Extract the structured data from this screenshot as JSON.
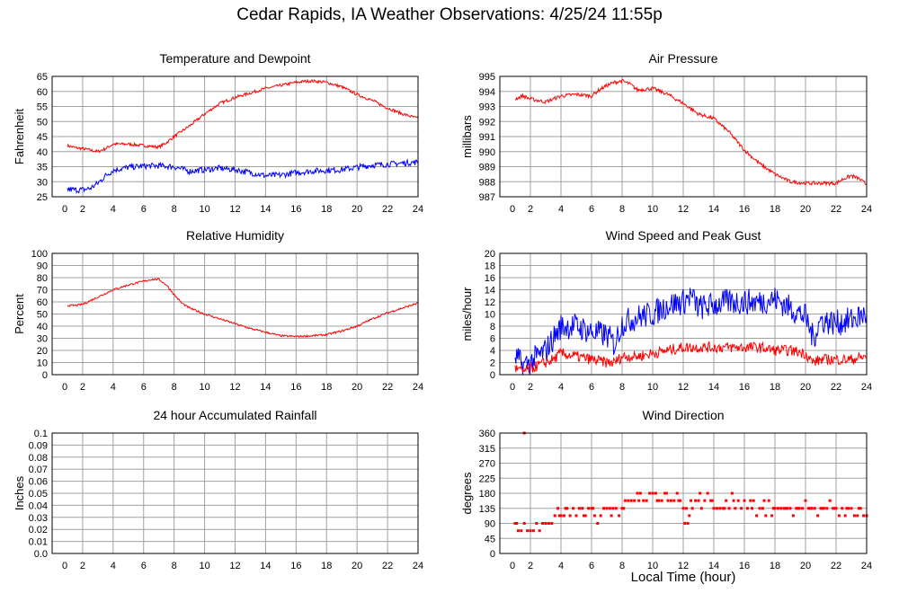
{
  "page": {
    "title": "Cedar Rapids, IA Weather Observations: 4/25/24 11:55p",
    "xaxis_title": "Local Time (hour)"
  },
  "colors": {
    "primary": "#ff0000",
    "secondary": "#0000ff",
    "grid": "#a0a0a0",
    "frame": "#000000"
  },
  "chart_data": [
    {
      "type": "line",
      "title": "Temperature and Dewpoint",
      "xlabel": "",
      "ylabel": "Fahrenheit",
      "xlim": [
        0,
        24
      ],
      "ylim": [
        25,
        65
      ],
      "xticks": [
        2,
        4,
        6,
        8,
        10,
        12,
        14,
        16,
        18,
        20,
        22,
        24
      ],
      "yticks": [
        25,
        30,
        35,
        40,
        45,
        50,
        55,
        60,
        65
      ],
      "grid": true,
      "series": [
        {
          "color": "#ff0000",
          "noise": 0.5,
          "x": [
            1,
            1.5,
            2,
            2.5,
            3,
            3.5,
            4,
            5,
            6,
            7,
            7.5,
            8,
            9,
            10,
            11,
            12,
            13,
            14,
            15,
            16,
            16.5,
            17,
            18,
            19,
            20,
            21,
            22,
            23,
            24
          ],
          "y": [
            42,
            41.3,
            41,
            40.5,
            40,
            41,
            42.5,
            42.5,
            42,
            41.5,
            43,
            45,
            48.5,
            52.5,
            56,
            58,
            59.5,
            61,
            62,
            63,
            63.3,
            63.5,
            63,
            61.5,
            59,
            57,
            54.5,
            52.5,
            51
          ]
        },
        {
          "color": "#0000ff",
          "noise": 1.0,
          "x": [
            1,
            1.5,
            2,
            2.5,
            3,
            3.5,
            4,
            5,
            6,
            7,
            8,
            9,
            10,
            11,
            12,
            13,
            14,
            15,
            16,
            17,
            18,
            19,
            20,
            21,
            22,
            23,
            24
          ],
          "y": [
            27.5,
            27.3,
            27.3,
            27.8,
            29.5,
            32,
            33.8,
            34.8,
            35.2,
            35.3,
            35,
            33.5,
            34,
            34.5,
            34,
            33,
            32,
            32.2,
            33,
            33.5,
            33.8,
            34,
            34.8,
            35.5,
            35.8,
            36.2,
            36.5
          ]
        }
      ]
    },
    {
      "type": "line",
      "title": "Air Pressure",
      "xlabel": "",
      "ylabel": "millibars",
      "xlim": [
        0,
        24
      ],
      "ylim": [
        987,
        995
      ],
      "xticks": [
        2,
        4,
        6,
        8,
        10,
        12,
        14,
        16,
        18,
        20,
        22,
        24
      ],
      "yticks": [
        987,
        988,
        989,
        990,
        991,
        992,
        993,
        994,
        995
      ],
      "grid": true,
      "series": [
        {
          "color": "#ff0000",
          "noise": 0.12,
          "x": [
            1,
            1.5,
            2,
            2.5,
            3,
            3.5,
            4,
            5,
            6,
            6.5,
            7,
            7.5,
            8,
            8.5,
            9,
            10,
            11,
            12,
            13,
            14,
            15,
            16,
            17,
            18,
            19,
            20,
            21,
            22,
            22.5,
            23,
            23.5,
            24
          ],
          "y": [
            993.5,
            993.7,
            993.5,
            993.4,
            993.3,
            993.5,
            993.7,
            993.8,
            993.7,
            994.1,
            994.4,
            994.6,
            994.7,
            994.5,
            994.1,
            994.2,
            993.8,
            993.2,
            992.5,
            992.2,
            991.3,
            990.1,
            989.2,
            988.5,
            988.0,
            987.9,
            987.9,
            987.9,
            988.2,
            988.4,
            988.2,
            987.8
          ]
        }
      ]
    },
    {
      "type": "line",
      "title": "Relative Humidity",
      "xlabel": "",
      "ylabel": "Percent",
      "xlim": [
        0,
        24
      ],
      "ylim": [
        0,
        100
      ],
      "xticks": [
        2,
        4,
        6,
        8,
        10,
        12,
        14,
        16,
        18,
        20,
        22,
        24
      ],
      "yticks": [
        0,
        10,
        20,
        30,
        40,
        50,
        60,
        70,
        80,
        90,
        100
      ],
      "grid": true,
      "series": [
        {
          "color": "#ff0000",
          "noise": 0.8,
          "x": [
            1,
            1.5,
            2,
            3,
            4,
            5,
            6,
            6.5,
            7,
            7.5,
            8,
            8.5,
            9,
            10,
            11,
            12,
            13,
            14,
            15,
            16,
            17,
            18,
            19,
            20,
            21,
            22,
            23,
            24
          ],
          "y": [
            57,
            57,
            58,
            64,
            70,
            74,
            77,
            78.5,
            78.5,
            74,
            66,
            59,
            55,
            50,
            46,
            42,
            38,
            35,
            32,
            31.5,
            32,
            33,
            36,
            40,
            46,
            51,
            55,
            59
          ]
        }
      ]
    },
    {
      "type": "line",
      "title": "Wind Speed and Peak Gust",
      "xlabel": "",
      "ylabel": "miles/hour",
      "xlim": [
        0,
        24
      ],
      "ylim": [
        0,
        20
      ],
      "xticks": [
        2,
        4,
        6,
        8,
        10,
        12,
        14,
        16,
        18,
        20,
        22,
        24
      ],
      "yticks": [
        0,
        2,
        4,
        6,
        8,
        10,
        12,
        14,
        16,
        18,
        20
      ],
      "grid": true,
      "series": [
        {
          "color": "#0000ff",
          "noise": 2.2,
          "x": [
            1,
            1.5,
            2,
            2.5,
            3,
            3.5,
            4,
            5,
            6,
            7,
            7.5,
            8,
            9,
            10,
            11,
            12,
            12.5,
            13,
            14,
            15,
            16,
            17,
            18,
            19,
            20,
            20.5,
            21,
            22,
            23,
            24
          ],
          "y": [
            3,
            1.5,
            2,
            3,
            4,
            6,
            8,
            8,
            7,
            6.5,
            5,
            8.5,
            9.5,
            10,
            11.5,
            12,
            13,
            11,
            11.5,
            12,
            12,
            12,
            12.5,
            11,
            9.5,
            6,
            9,
            8.5,
            9,
            10
          ]
        },
        {
          "color": "#ff0000",
          "noise": 0.9,
          "x": [
            1,
            1.5,
            2,
            2.5,
            3,
            3.5,
            4,
            5,
            6,
            7,
            7.5,
            8,
            9,
            10,
            11,
            12,
            13,
            14,
            15,
            16,
            17,
            18,
            19,
            20,
            20.5,
            21,
            22,
            23,
            24
          ],
          "y": [
            1,
            0.5,
            1,
            1.5,
            2,
            2.5,
            3.5,
            3,
            2.5,
            2,
            2,
            3,
            3,
            3.5,
            4,
            4.5,
            4.5,
            4.5,
            4.5,
            4.5,
            4.5,
            4,
            4,
            3.5,
            2,
            2.5,
            2.5,
            2.5,
            3
          ]
        }
      ]
    },
    {
      "type": "line",
      "title": "24 hour Accumulated Rainfall",
      "xlabel": "",
      "ylabel": "Inches",
      "xlim": [
        0,
        24
      ],
      "ylim": [
        0,
        0.1
      ],
      "xticks": [
        2,
        4,
        6,
        8,
        10,
        12,
        14,
        16,
        18,
        20,
        22,
        24
      ],
      "yticks": [
        0.0,
        0.01,
        0.02,
        0.03,
        0.04,
        0.05,
        0.06,
        0.07,
        0.08,
        0.09,
        0.1
      ],
      "ytick_labels": [
        "0.0",
        "0.01",
        "0.02",
        "0.03",
        "0.04",
        "0.05",
        "0.06",
        "0.07",
        "0.08",
        "0.09",
        "0.1"
      ],
      "grid": true,
      "series": [
        {
          "color": "#ff0000",
          "noise": 0,
          "x": [
            1,
            24
          ],
          "y": [
            0,
            0
          ]
        }
      ]
    },
    {
      "type": "scatter",
      "title": "Wind Direction",
      "xlabel": "Local Time (hour)",
      "ylabel": "degrees",
      "xlim": [
        0,
        24
      ],
      "ylim": [
        0,
        360
      ],
      "xticks": [
        2,
        4,
        6,
        8,
        10,
        12,
        14,
        16,
        18,
        20,
        22,
        24
      ],
      "yticks": [
        0,
        45,
        90,
        135,
        180,
        225,
        270,
        315,
        360
      ],
      "grid": true,
      "series": [
        {
          "color": "#ff0000",
          "noise": 0,
          "x": [
            1.0,
            1.2,
            1.4,
            1.6,
            1.8,
            2.0,
            2.2,
            2.4,
            2.6,
            2.8,
            3.0,
            3.2,
            3.4,
            3.6,
            3.8,
            4.0,
            4.2,
            4.4,
            4.6,
            4.8,
            5.0,
            5.2,
            5.4,
            5.6,
            5.8,
            6.0,
            6.2,
            6.4,
            6.6,
            6.8,
            7.0,
            7.2,
            7.4,
            7.6,
            7.8,
            8.0,
            8.2,
            8.4,
            8.6,
            8.8,
            9.0,
            9.2,
            9.4,
            9.6,
            9.8,
            10.0,
            10.2,
            10.4,
            10.6,
            10.8,
            11.0,
            11.2,
            11.4,
            11.6,
            11.8,
            12.0,
            12.2,
            12.4,
            12.6,
            12.8,
            13.0,
            13.2,
            13.4,
            13.6,
            13.8,
            14.0,
            14.2,
            14.4,
            14.6,
            14.8,
            15.0,
            15.2,
            15.4,
            15.6,
            15.8,
            16.0,
            16.2,
            16.4,
            16.6,
            16.8,
            17.0,
            17.2,
            17.4,
            17.6,
            17.8,
            18.0,
            18.2,
            18.4,
            18.6,
            18.8,
            19.0,
            19.2,
            19.4,
            19.6,
            19.8,
            20.0,
            20.2,
            20.4,
            20.6,
            20.8,
            21.0,
            21.2,
            21.4,
            21.6,
            21.8,
            22.0,
            22.2,
            22.4,
            22.6,
            22.8,
            23.0,
            23.2,
            23.4,
            23.6,
            23.8,
            24.0,
            1.6,
            1.1,
            3.9,
            4.3,
            5.5,
            6.1,
            7.3,
            8.1,
            9.1,
            10.3,
            10.9,
            11.7,
            12.5,
            13.1,
            13.9,
            14.7,
            15.3,
            16.5,
            17.3,
            17.9,
            18.7,
            19.5,
            20.3,
            21.1,
            21.9,
            22.7,
            23.5,
            12.3,
            12.1
          ],
          "y": [
            90,
            68,
            68,
            90,
            68,
            68,
            68,
            90,
            68,
            90,
            90,
            90,
            90,
            113,
            135,
            113,
            113,
            135,
            113,
            135,
            113,
            135,
            135,
            113,
            135,
            135,
            113,
            90,
            113,
            135,
            135,
            135,
            135,
            135,
            113,
            135,
            158,
            158,
            158,
            158,
            180,
            180,
            158,
            158,
            180,
            180,
            180,
            158,
            158,
            180,
            158,
            158,
            158,
            180,
            158,
            135,
            135,
            113,
            135,
            158,
            158,
            135,
            158,
            180,
            158,
            135,
            135,
            135,
            135,
            158,
            135,
            180,
            135,
            158,
            135,
            158,
            135,
            158,
            158,
            113,
            135,
            135,
            113,
            158,
            113,
            135,
            135,
            135,
            135,
            135,
            135,
            113,
            135,
            135,
            135,
            158,
            135,
            135,
            135,
            113,
            135,
            135,
            135,
            158,
            135,
            135,
            113,
            135,
            113,
            135,
            135,
            113,
            113,
            135,
            113,
            113,
            360,
            90,
            113,
            135,
            113,
            135,
            113,
            135,
            158,
            158,
            180,
            158,
            158,
            180,
            158,
            135,
            158,
            135,
            158,
            135,
            135,
            135,
            135,
            135,
            135,
            135,
            135,
            90,
            90
          ]
        }
      ]
    }
  ]
}
